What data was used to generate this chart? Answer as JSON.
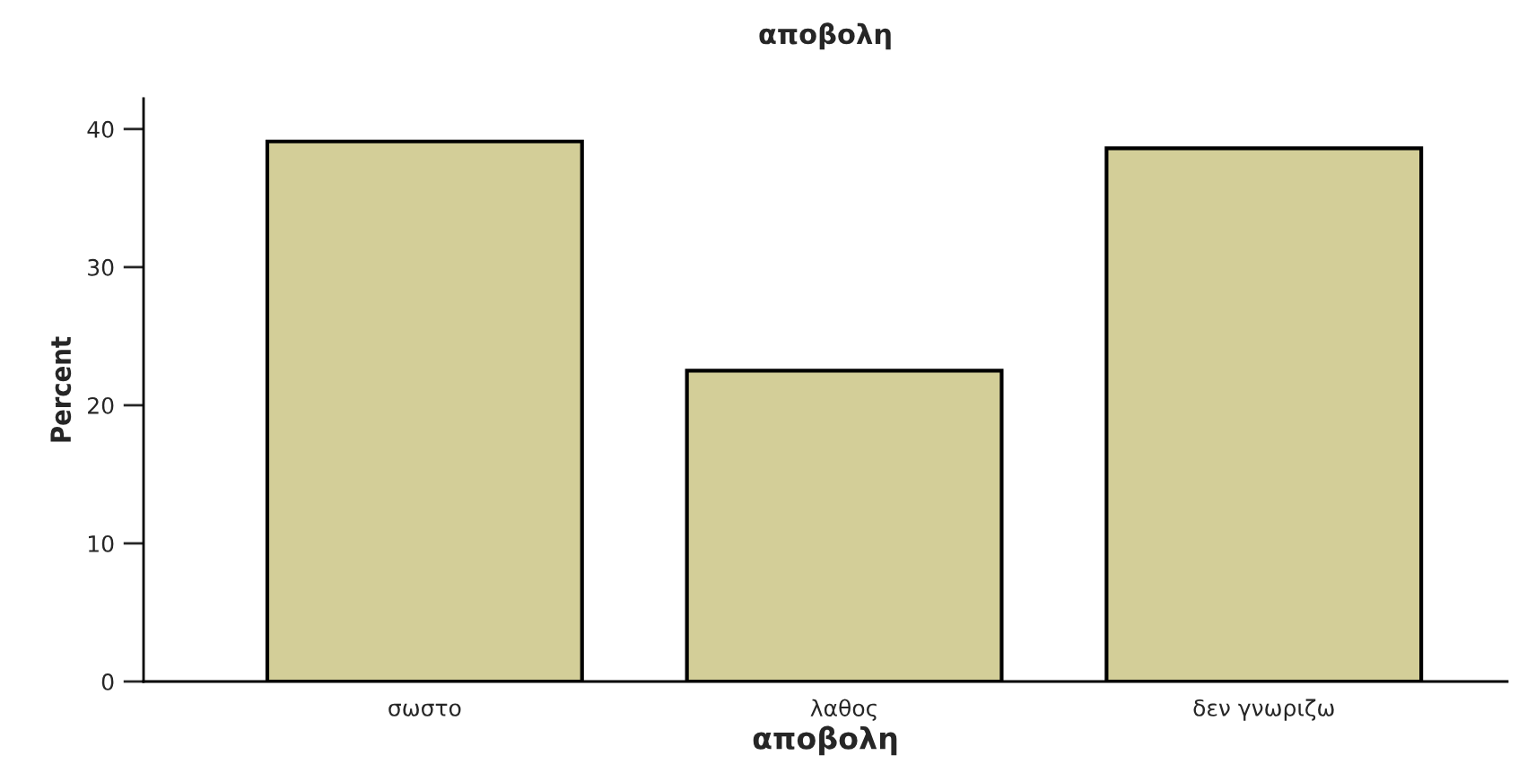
{
  "chart_data": {
    "type": "bar",
    "title": "αποβολη",
    "xlabel": "αποβολη",
    "ylabel": "Percent",
    "categories": [
      "σωστο",
      "λαθος",
      "δεν γνωριζω"
    ],
    "values": [
      39.1,
      22.5,
      38.6
    ],
    "color": "#d3ce98",
    "ylim": [
      0,
      42.2
    ],
    "yticks": [
      0,
      10,
      20,
      30,
      40
    ],
    "grid": false
  }
}
